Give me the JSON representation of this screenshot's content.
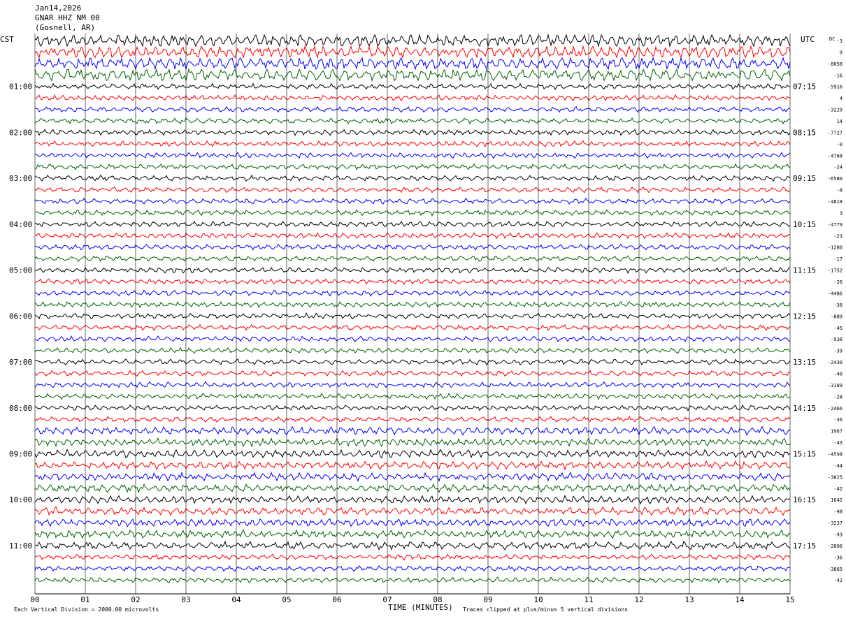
{
  "header": {
    "date": "Jan14,2026",
    "station": "GNAR HHZ NM 00",
    "location": "(Gosnell, AR)"
  },
  "left_timezone": "CST",
  "right_timezone": "UTC",
  "dc_label": "DC",
  "footer": {
    "left": "Each Vertical Division = 2000.00 microvolts",
    "right": "Traces clipped at plus/minus 5 vertical divisions"
  },
  "colors": {
    "black": "#000000",
    "red": "#ff0000",
    "blue": "#0000ff",
    "green": "#006400",
    "grid": "#000000"
  },
  "chart_data": {
    "type": "line",
    "title": "",
    "xlabel": "TIME (MINUTES)",
    "x_ticks": [
      "00",
      "01",
      "02",
      "03",
      "04",
      "05",
      "06",
      "07",
      "08",
      "09",
      "10",
      "11",
      "12",
      "13",
      "14",
      "15"
    ],
    "xlim": [
      0,
      15
    ],
    "trace_minutes": 15,
    "trace_count": 48,
    "trace_color_cycle": [
      "black",
      "red",
      "blue",
      "green"
    ],
    "left_hour_labels": [
      "01:00",
      "02:00",
      "03:00",
      "04:00",
      "05:00",
      "06:00",
      "07:00",
      "08:00",
      "09:00",
      "10:00",
      "11:00"
    ],
    "right_hour_labels": [
      "07:15",
      "08:15",
      "09:15",
      "10:15",
      "11:15",
      "12:15",
      "13:15",
      "14:15",
      "15:15",
      "16:15",
      "17:15"
    ],
    "dc_offsets": [
      "-3",
      "9",
      "-8058",
      "-16",
      "-5916",
      "4",
      "-3229",
      "14",
      "-7727",
      "-0",
      "-4768",
      "-24",
      "-6580",
      "-8",
      "-4818",
      "3",
      "-4779",
      "-23",
      "-1280",
      "-17",
      "-1752",
      "-26",
      "-4486",
      "-38",
      "-889",
      "-45",
      "-938",
      "-39",
      "-2430",
      "-40",
      "-3189",
      "-28",
      "-2466",
      "-36",
      "1967",
      "-43",
      "-4598",
      "-44",
      "-3825",
      "-42",
      "1642",
      "-48",
      "-3237",
      "-43",
      "-2806",
      "-36",
      "-3865",
      "-42"
    ]
  }
}
